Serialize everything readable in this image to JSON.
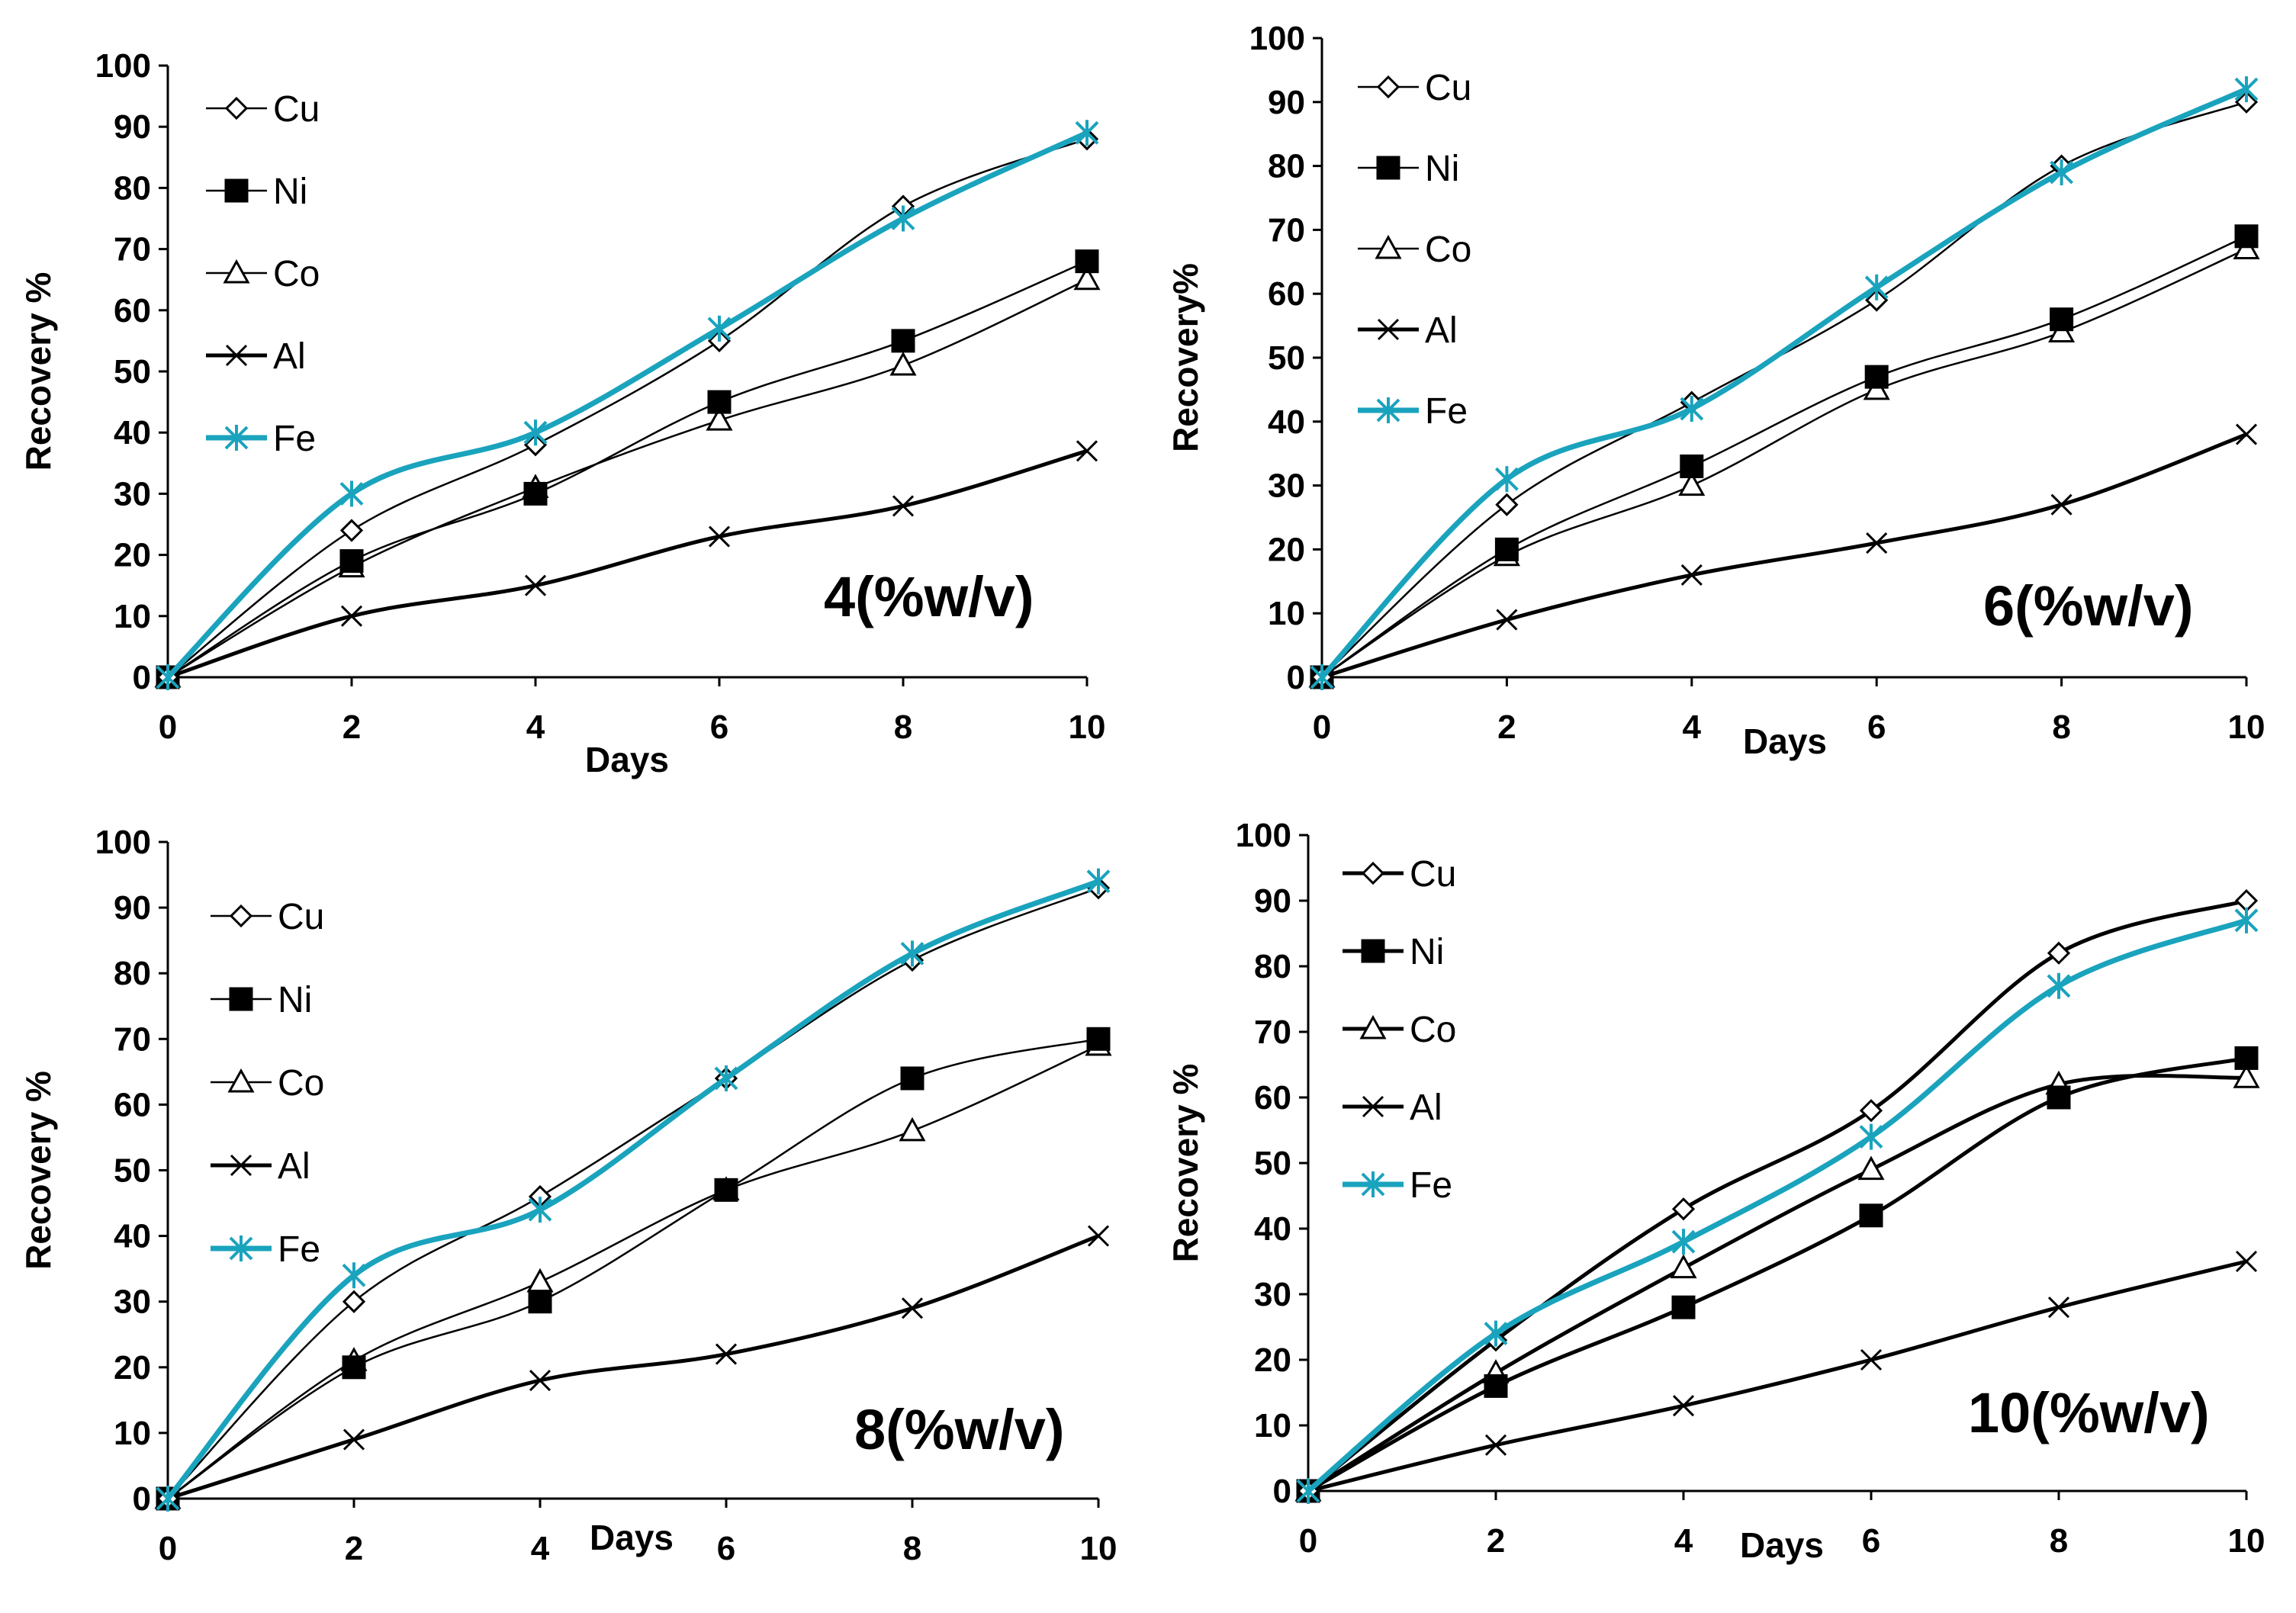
{
  "chart_data": [
    {
      "type": "line",
      "title": "",
      "annotation": "4(%w/v)",
      "xlabel": "Days",
      "ylabel": "Recovery %",
      "xlim": [
        0,
        10
      ],
      "ylim": [
        0,
        100
      ],
      "xticks": [
        0,
        2,
        4,
        6,
        8,
        10
      ],
      "yticks": [
        0,
        10,
        20,
        30,
        40,
        50,
        60,
        70,
        80,
        90,
        100
      ],
      "x": [
        0,
        2,
        4,
        6,
        8,
        10
      ],
      "legend_position": "top-left",
      "series": [
        {
          "name": "Cu",
          "values": [
            0,
            24,
            38,
            55,
            77,
            88
          ]
        },
        {
          "name": "Ni",
          "values": [
            0,
            19,
            30,
            45,
            55,
            68
          ]
        },
        {
          "name": "Co",
          "values": [
            0,
            18,
            31,
            42,
            51,
            65
          ]
        },
        {
          "name": "Al",
          "values": [
            0,
            10,
            15,
            23,
            28,
            37
          ]
        },
        {
          "name": "Fe",
          "values": [
            0,
            30,
            40,
            57,
            75,
            89
          ]
        }
      ]
    },
    {
      "type": "line",
      "title": "",
      "annotation": "6(%w/v)",
      "xlabel": "Days",
      "ylabel": "Recovery%",
      "xlim": [
        0,
        10
      ],
      "ylim": [
        0,
        100
      ],
      "xticks": [
        0,
        2,
        4,
        6,
        8,
        10
      ],
      "yticks": [
        0,
        10,
        20,
        30,
        40,
        50,
        60,
        70,
        80,
        90,
        100
      ],
      "x": [
        0,
        2,
        4,
        6,
        8,
        10
      ],
      "legend_position": "top-left",
      "series": [
        {
          "name": "Cu",
          "values": [
            0,
            27,
            43,
            59,
            80,
            90
          ]
        },
        {
          "name": "Ni",
          "values": [
            0,
            20,
            33,
            47,
            56,
            69
          ]
        },
        {
          "name": "Co",
          "values": [
            0,
            19,
            30,
            45,
            54,
            67
          ]
        },
        {
          "name": "Al",
          "values": [
            0,
            9,
            16,
            21,
            27,
            38
          ]
        },
        {
          "name": "Fe",
          "values": [
            0,
            31,
            42,
            61,
            79,
            92
          ]
        }
      ]
    },
    {
      "type": "line",
      "title": "",
      "annotation": "8(%w/v)",
      "xlabel": "Days",
      "ylabel": "Recovery %",
      "xlim": [
        0,
        10
      ],
      "ylim": [
        0,
        100
      ],
      "xticks": [
        0,
        2,
        4,
        6,
        8,
        10
      ],
      "yticks": [
        0,
        10,
        20,
        30,
        40,
        50,
        60,
        70,
        80,
        90,
        100
      ],
      "x": [
        0,
        2,
        4,
        6,
        8,
        10
      ],
      "legend_position": "top-left",
      "series": [
        {
          "name": "Cu",
          "values": [
            0,
            30,
            46,
            64,
            82,
            93
          ]
        },
        {
          "name": "Ni",
          "values": [
            0,
            20,
            30,
            47,
            64,
            70
          ]
        },
        {
          "name": "Co",
          "values": [
            0,
            21,
            33,
            47,
            56,
            69
          ]
        },
        {
          "name": "Al",
          "values": [
            0,
            9,
            18,
            22,
            29,
            40
          ]
        },
        {
          "name": "Fe",
          "values": [
            0,
            34,
            44,
            64,
            83,
            94
          ]
        }
      ]
    },
    {
      "type": "line",
      "title": "",
      "annotation": "10(%w/v)",
      "xlabel": "Days",
      "ylabel": "Recovery %",
      "xlim": [
        0,
        10
      ],
      "ylim": [
        0,
        100
      ],
      "xticks": [
        0,
        2,
        4,
        6,
        8,
        10
      ],
      "yticks": [
        0,
        10,
        20,
        30,
        40,
        50,
        60,
        70,
        80,
        90,
        100
      ],
      "x": [
        0,
        2,
        4,
        6,
        8,
        10
      ],
      "legend_position": "top-left",
      "series": [
        {
          "name": "Cu",
          "values": [
            0,
            23,
            43,
            58,
            82,
            90
          ]
        },
        {
          "name": "Ni",
          "values": [
            0,
            16,
            28,
            42,
            60,
            66
          ]
        },
        {
          "name": "Co",
          "values": [
            0,
            18,
            34,
            49,
            62,
            63
          ]
        },
        {
          "name": "Al",
          "values": [
            0,
            7,
            13,
            20,
            28,
            35
          ]
        },
        {
          "name": "Fe",
          "values": [
            0,
            24,
            38,
            54,
            77,
            87
          ]
        }
      ]
    }
  ],
  "colors": {
    "axis": "#000000",
    "Cu": "#000000",
    "Ni": "#000000",
    "Co": "#000000",
    "Al": "#000000",
    "Fe": "#1aa3bd"
  }
}
